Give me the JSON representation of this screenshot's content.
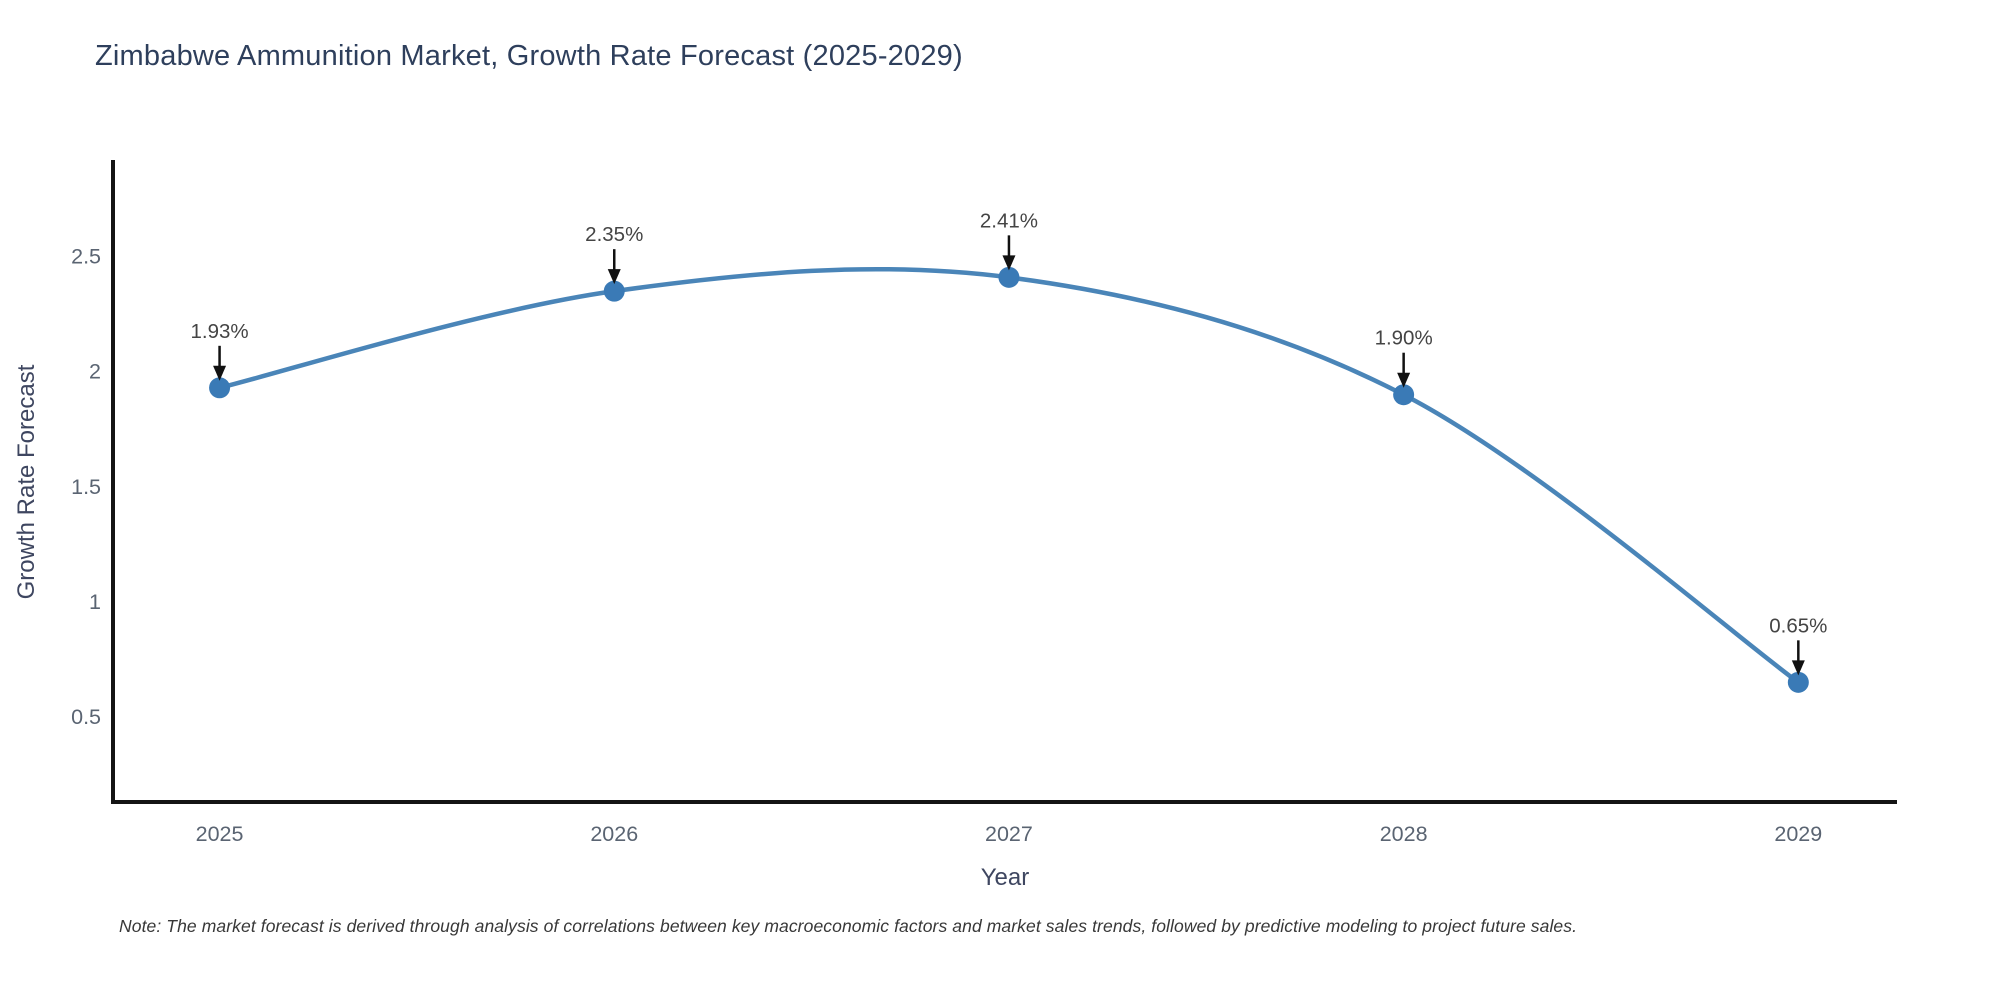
{
  "page": {
    "note": "Note: The market forecast is derived through analysis of correlations between key macroeconomic factors and market sales trends, followed by predictive modeling to project future sales."
  },
  "chart_data": {
    "type": "line",
    "title": "Zimbabwe Ammunition Market, Growth Rate Forecast (2025-2029)",
    "xlabel": "Year",
    "ylabel": "Growth Rate Forecast",
    "x": [
      2025,
      2026,
      2027,
      2028,
      2029
    ],
    "values": [
      1.93,
      2.35,
      2.41,
      1.9,
      0.65
    ],
    "point_labels": [
      "1.93%",
      "2.35%",
      "2.41%",
      "1.90%",
      "0.65%"
    ],
    "xtick_labels": [
      "2025",
      "2026",
      "2027",
      "2028",
      "2029"
    ],
    "yticks": [
      0.5,
      1,
      1.5,
      2,
      2.5
    ],
    "ytick_labels": [
      "0.5",
      "1",
      "1.5",
      "2",
      "2.5"
    ],
    "xlim": [
      2024.73,
      2029.25
    ],
    "ylim": [
      0.13,
      2.92
    ],
    "line_shape": "spline",
    "grid": false,
    "legend": "none",
    "colors": {
      "line": "#4a85b8",
      "marker": "#3a7ab6",
      "axis": "#141414",
      "arrow": "#111111",
      "title_text": "#2e3f5c",
      "axis_title_text": "#3e4660",
      "tick_text": "#5a6472",
      "annotation_text": "#444444",
      "note_text": "#383838",
      "background": "#ffffff"
    }
  }
}
